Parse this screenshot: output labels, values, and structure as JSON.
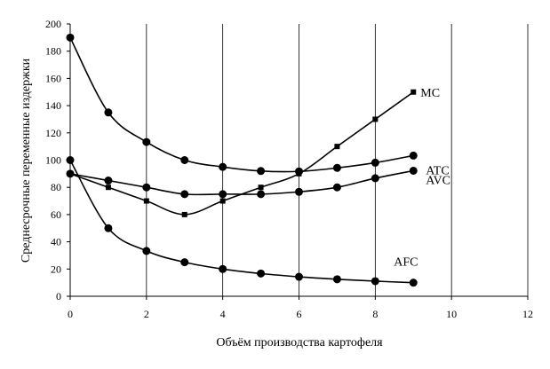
{
  "chart_data": {
    "type": "line",
    "title": "",
    "xlabel": "Объём производства картофеля",
    "ylabel": "Среднесрочные переменные издержки",
    "xlim": [
      0,
      12
    ],
    "ylim": [
      0,
      200
    ],
    "xticks": [
      0,
      2,
      4,
      6,
      8,
      10,
      12
    ],
    "yticks": [
      0,
      20,
      40,
      60,
      80,
      100,
      120,
      140,
      160,
      180,
      200
    ],
    "grid": "vertical",
    "series": [
      {
        "name": "MC",
        "marker": "square",
        "x": [
          0,
          1,
          2,
          3,
          4,
          5,
          6,
          7,
          8,
          9
        ],
        "y": [
          90,
          80,
          70,
          60,
          70,
          80,
          90,
          110,
          130,
          150
        ]
      },
      {
        "name": "ATC",
        "marker": "circle",
        "x": [
          0,
          1,
          2,
          3,
          4,
          5,
          6,
          7,
          8,
          9
        ],
        "y": [
          190,
          135,
          113.3,
          100,
          95,
          92,
          91.7,
          94.3,
          98.1,
          103.3
        ]
      },
      {
        "name": "AVC",
        "marker": "circle",
        "x": [
          0,
          1,
          2,
          3,
          4,
          5,
          6,
          7,
          8,
          9
        ],
        "y": [
          90,
          85,
          80,
          75,
          75,
          75,
          76.7,
          80,
          86.7,
          92.2
        ]
      },
      {
        "name": "AFC",
        "marker": "circle",
        "x": [
          0,
          1,
          2,
          3,
          4,
          5,
          6,
          7,
          8,
          9
        ],
        "y": [
          100,
          50,
          33.3,
          25,
          20,
          16.7,
          14.3,
          12.5,
          11.1,
          10
        ]
      }
    ]
  }
}
